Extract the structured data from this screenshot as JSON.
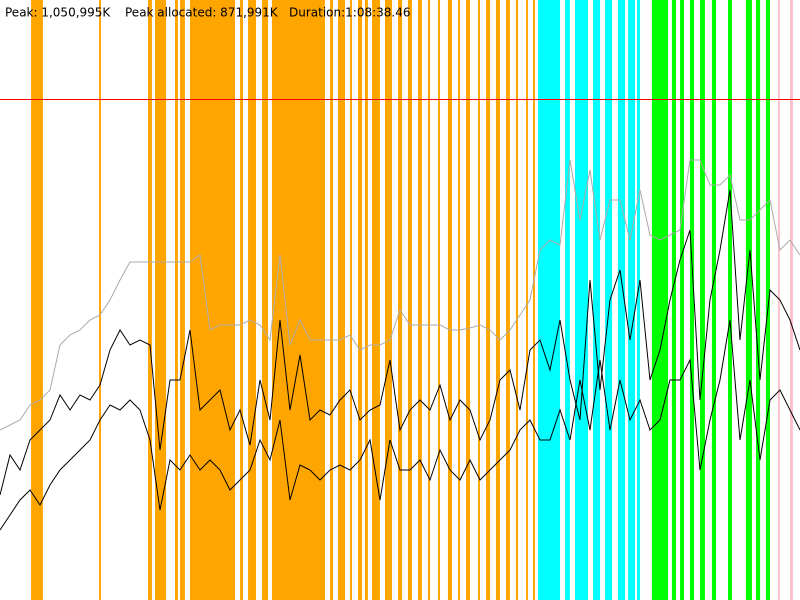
{
  "header": {
    "peak_allocated": "Peak allocated: 871,991K",
    "duration": "Duration:1:08:38.46"
  },
  "chart_data": {
    "type": "line",
    "xlim": [
      0,
      4118.46
    ],
    "ylim": [
      0,
      1260000
    ],
    "peak_line": {
      "value": 1050995,
      "label": "Peak: 1,050,995K",
      "color": "#ff0000"
    },
    "bands": [
      {
        "color": "#ffa500",
        "intervals": [
          [
            160,
            221
          ],
          [
            510,
            520
          ],
          [
            762,
            782
          ],
          [
            798,
            855
          ],
          [
            901,
            916
          ],
          [
            927,
            952
          ],
          [
            978,
            1210
          ],
          [
            1236,
            1251
          ],
          [
            1277,
            1318
          ],
          [
            1349,
            1380
          ],
          [
            1400,
            1673
          ],
          [
            1699,
            1714
          ],
          [
            1740,
            1776
          ],
          [
            1802,
            1812
          ],
          [
            1843,
            1864
          ],
          [
            1879,
            1894
          ],
          [
            1915,
            1956
          ],
          [
            1982,
            2018
          ],
          [
            2049,
            2070
          ],
          [
            2100,
            2121
          ],
          [
            2152,
            2172
          ],
          [
            2203,
            2214
          ],
          [
            2255,
            2265
          ],
          [
            2306,
            2327
          ],
          [
            2358,
            2368
          ],
          [
            2399,
            2420
          ],
          [
            2461,
            2471
          ],
          [
            2502,
            2523
          ],
          [
            2553,
            2574
          ],
          [
            2605,
            2625
          ],
          [
            2656,
            2667
          ],
          [
            2708,
            2718
          ],
          [
            2744,
            2754
          ]
        ]
      },
      {
        "color": "#00ffff",
        "intervals": [
          [
            2770,
            2883
          ],
          [
            2909,
            2934
          ],
          [
            2960,
            3027
          ],
          [
            3053,
            3089
          ],
          [
            3115,
            3151
          ],
          [
            3181,
            3218
          ],
          [
            3233,
            3269
          ],
          [
            3279,
            3295
          ]
        ]
      },
      {
        "color": "#00ff00",
        "intervals": [
          [
            3356,
            3439
          ],
          [
            3459,
            3480
          ],
          [
            3501,
            3521
          ],
          [
            3552,
            3573
          ],
          [
            3604,
            3629
          ],
          [
            3665,
            3686
          ],
          [
            3748,
            3768
          ],
          [
            3840,
            3871
          ],
          [
            3892,
            3913
          ],
          [
            3943,
            3964
          ]
        ]
      },
      {
        "color": "#ffc0cb",
        "intervals": [
          [
            4005,
            4015
          ],
          [
            4067,
            4082
          ]
        ]
      }
    ],
    "x": [
      0,
      51.5,
      103.0,
      154.4,
      205.9,
      257.4,
      308.9,
      360.4,
      411.8,
      463.3,
      514.8,
      566.3,
      617.8,
      669.2,
      720.7,
      772.2,
      823.7,
      875.2,
      926.6,
      978.1,
      1029.6,
      1081.1,
      1132.6,
      1184.0,
      1235.5,
      1287.0,
      1338.5,
      1390.0,
      1441.4,
      1492.9,
      1544.4,
      1595.9,
      1647.4,
      1698.8,
      1750.3,
      1801.8,
      1853.3,
      1904.8,
      1956.2,
      2007.7,
      2059.2,
      2110.7,
      2162.2,
      2213.6,
      2265.1,
      2316.6,
      2368.1,
      2419.6,
      2471.0,
      2522.5,
      2574.0,
      2625.5,
      2677.0,
      2728.4,
      2779.9,
      2831.4,
      2882.9,
      2934.4,
      2985.8,
      3037.3,
      3088.8,
      3140.3,
      3191.8,
      3243.2,
      3294.7,
      3346.2,
      3397.7,
      3449.2,
      3500.6,
      3552.1,
      3603.6,
      3655.1,
      3706.6,
      3758.0,
      3809.5,
      3861.0,
      3912.5,
      3964.0,
      4015.4,
      4066.9,
      4118.4
    ],
    "series": [
      {
        "color": "#aaaaaa",
        "values": [
          357000,
          367500,
          378000,
          409500,
          420000,
          441000,
          535500,
          556500,
          567000,
          588000,
          598500,
          630000,
          672000,
          709800,
          709800,
          709800,
          709800,
          709800,
          709800,
          709800,
          724500,
          567000,
          577500,
          577500,
          577500,
          588000,
          577500,
          546000,
          724500,
          535500,
          588000,
          546000,
          546000,
          546000,
          546000,
          556500,
          525000,
          535500,
          535500,
          546000,
          609000,
          577500,
          577500,
          577500,
          577500,
          567000,
          567000,
          571200,
          577500,
          567000,
          546000,
          567000,
          598500,
          630000,
          735000,
          756000,
          745500,
          924000,
          798000,
          903000,
          756000,
          840000,
          840000,
          756000,
          861000,
          766500,
          756000,
          766500,
          777000,
          924000,
          924000,
          871500,
          871500,
          892500,
          798000,
          798000,
          819000,
          840000,
          735000,
          756000,
          724500
        ]
      },
      {
        "color": "#000000",
        "values": [
          220500,
          304500,
          273000,
          336000,
          357000,
          378000,
          430500,
          399000,
          430500,
          420000,
          451500,
          525000,
          567000,
          535500,
          546000,
          535500,
          315000,
          462000,
          462000,
          567000,
          399000,
          420000,
          441000,
          357000,
          399000,
          325500,
          462000,
          378000,
          588000,
          399000,
          514500,
          378000,
          399000,
          388500,
          420000,
          441000,
          378000,
          399000,
          409500,
          504000,
          357000,
          399000,
          420000,
          399000,
          451500,
          378000,
          420000,
          399000,
          336000,
          378000,
          462000,
          483000,
          399000,
          525000,
          546000,
          483000,
          588000,
          462000,
          378000,
          672000,
          441000,
          630000,
          693000,
          546000,
          672000,
          462000,
          525000,
          630000,
          714000,
          777000,
          420000,
          630000,
          735000,
          861000,
          546000,
          735000,
          462000,
          651000,
          630000,
          588000,
          525000
        ]
      },
      {
        "color": "#000000",
        "values": [
          147000,
          178500,
          210000,
          231000,
          199500,
          241500,
          273000,
          294000,
          315000,
          336000,
          378000,
          409500,
          399000,
          420000,
          399000,
          336000,
          189000,
          294000,
          273000,
          304500,
          273000,
          294000,
          273000,
          231000,
          252000,
          273000,
          336000,
          294000,
          378000,
          210000,
          283500,
          273000,
          252000,
          273000,
          283500,
          273000,
          294000,
          336000,
          210000,
          336000,
          273000,
          273000,
          294000,
          252000,
          315000,
          273000,
          252000,
          294000,
          252000,
          273000,
          294000,
          315000,
          357000,
          378000,
          336000,
          336000,
          399000,
          336000,
          462000,
          357000,
          504000,
          357000,
          462000,
          378000,
          420000,
          357000,
          378000,
          462000,
          462000,
          504000,
          273000,
          378000,
          462000,
          588000,
          336000,
          462000,
          294000,
          420000,
          441000,
          399000,
          357000
        ]
      }
    ]
  }
}
